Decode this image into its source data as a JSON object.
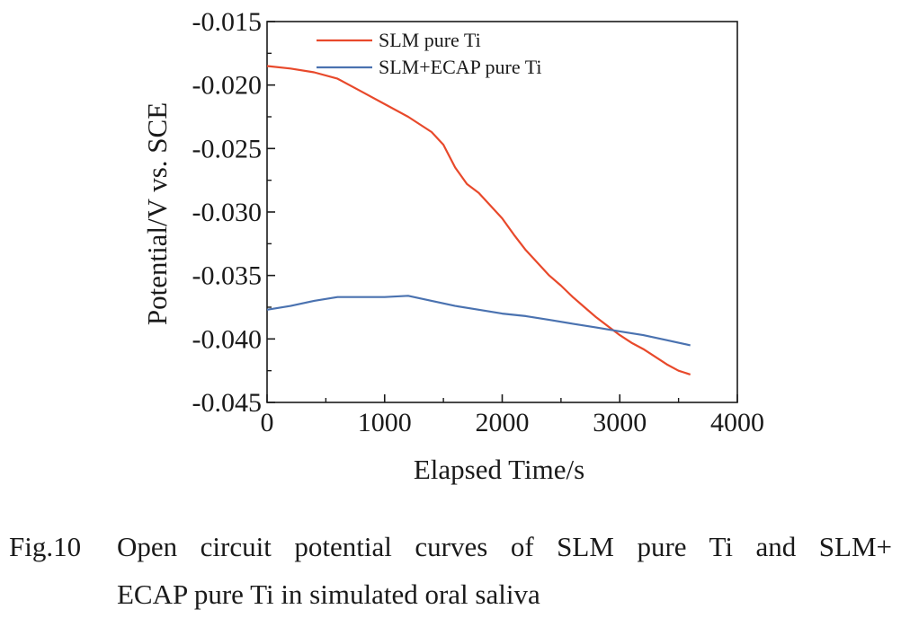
{
  "chart_data": {
    "type": "line",
    "xlabel": "Elapsed Time/s",
    "ylabel": "Potential/V vs. SCE",
    "xlim": [
      0,
      4000
    ],
    "ylim": [
      -0.045,
      -0.015
    ],
    "xticks": [
      0,
      1000,
      2000,
      3000,
      4000
    ],
    "xtick_labels": [
      "0",
      "1000",
      "2000",
      "3000",
      "4000"
    ],
    "yticks": [
      -0.045,
      -0.04,
      -0.035,
      -0.03,
      -0.025,
      -0.02,
      -0.015
    ],
    "ytick_labels": [
      "-0.045",
      "-0.040",
      "-0.035",
      "-0.030",
      "-0.025",
      "-0.020",
      "-0.015"
    ],
    "grid": false,
    "legend_position": "top-right",
    "series": [
      {
        "name": "SLM pure Ti",
        "color": "#e8492b",
        "x": [
          0,
          200,
          400,
          600,
          800,
          1000,
          1200,
          1400,
          1500,
          1600,
          1700,
          1800,
          1900,
          2000,
          2100,
          2200,
          2300,
          2400,
          2500,
          2600,
          2700,
          2800,
          2900,
          3000,
          3100,
          3200,
          3300,
          3400,
          3500,
          3600
        ],
        "values": [
          -0.0185,
          -0.0187,
          -0.019,
          -0.0195,
          -0.0205,
          -0.0215,
          -0.0225,
          -0.0237,
          -0.0247,
          -0.0265,
          -0.0278,
          -0.0285,
          -0.0295,
          -0.0305,
          -0.0318,
          -0.033,
          -0.034,
          -0.035,
          -0.0358,
          -0.0367,
          -0.0375,
          -0.0383,
          -0.039,
          -0.0397,
          -0.0403,
          -0.0408,
          -0.0414,
          -0.042,
          -0.0425,
          -0.0428
        ]
      },
      {
        "name": "SLM+ECAP pure Ti",
        "color": "#4a72b0",
        "x": [
          0,
          200,
          400,
          600,
          800,
          1000,
          1200,
          1400,
          1600,
          1800,
          2000,
          2200,
          2400,
          2600,
          2800,
          3000,
          3200,
          3400,
          3600
        ],
        "values": [
          -0.0377,
          -0.0374,
          -0.037,
          -0.0367,
          -0.0367,
          -0.0367,
          -0.0366,
          -0.037,
          -0.0374,
          -0.0377,
          -0.038,
          -0.0382,
          -0.0385,
          -0.0388,
          -0.0391,
          -0.0394,
          -0.0397,
          -0.0401,
          -0.0405
        ]
      }
    ]
  },
  "caption": {
    "fig_number": "Fig.10",
    "line1": "Open circuit potential curves of SLM pure Ti and SLM+",
    "line2": "ECAP pure Ti in simulated oral saliva"
  }
}
